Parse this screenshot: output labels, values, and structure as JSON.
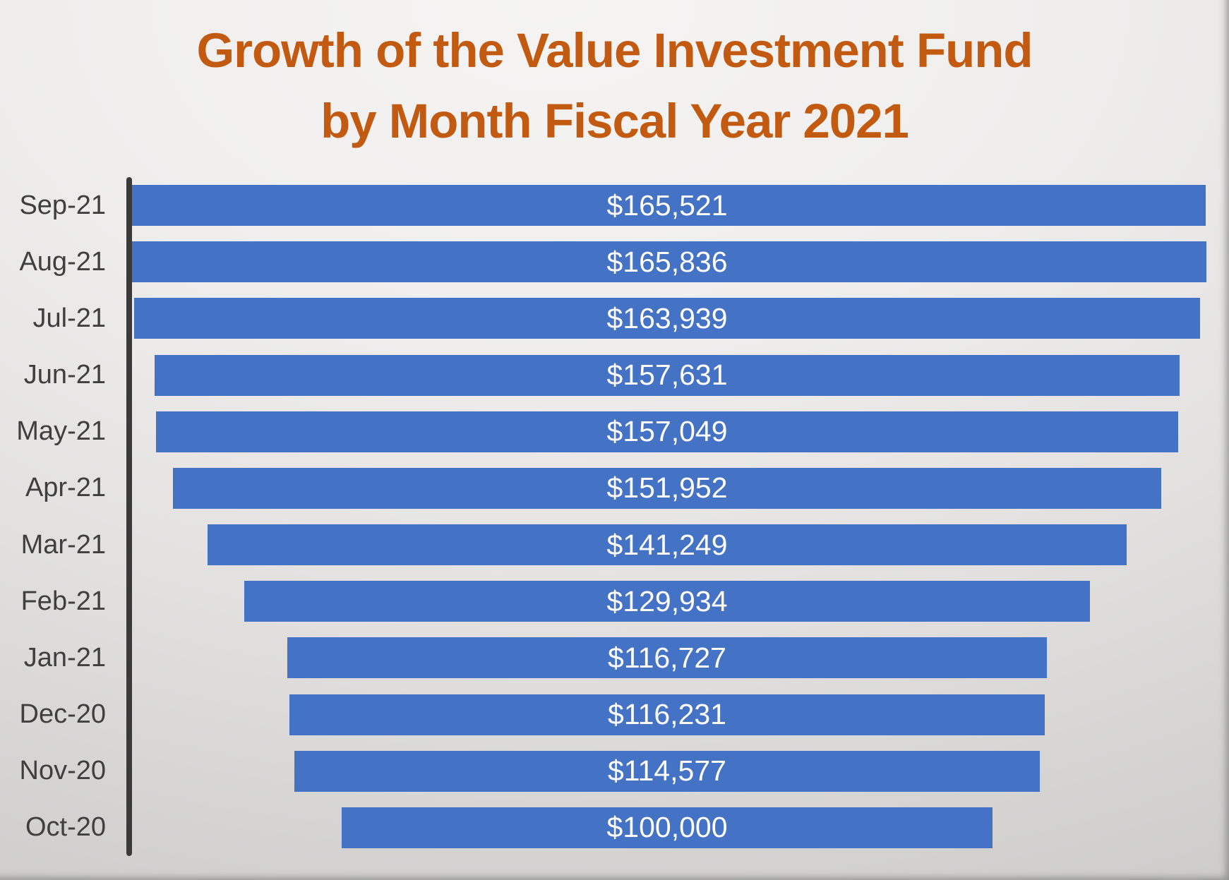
{
  "title": {
    "line1": "Growth of the Value Investment Fund",
    "line2": "by Month Fiscal Year 2021",
    "color": "#C25A11"
  },
  "chart_data": {
    "type": "bar",
    "subtype": "funnel",
    "orientation": "horizontal",
    "title": "Growth of the Value Investment Fund by Month Fiscal Year 2021",
    "xlabel": "",
    "ylabel": "",
    "legend": "none",
    "grid": false,
    "categories": [
      "Sep-21",
      "Aug-21",
      "Jul-21",
      "Jun-21",
      "May-21",
      "Apr-21",
      "Mar-21",
      "Feb-21",
      "Jan-21",
      "Dec-20",
      "Nov-20",
      "Oct-20"
    ],
    "values": [
      165521,
      165836,
      163939,
      157631,
      157049,
      151952,
      141249,
      129934,
      116727,
      116231,
      114577,
      100000
    ],
    "value_labels": [
      "$165,521",
      "$165,836",
      "$163,939",
      "$157,631",
      "$157,049",
      "$151,952",
      "$141,249",
      "$129,934",
      "$116,727",
      "$116,231",
      "$114,577",
      "$100,000"
    ],
    "max_value": 165836,
    "bars_centered": true,
    "colors": {
      "bar": "#4472C4",
      "value_label": "#FFFFFF",
      "category_label": "#3F3F3F",
      "axis_line": "#3A3A3A"
    }
  }
}
